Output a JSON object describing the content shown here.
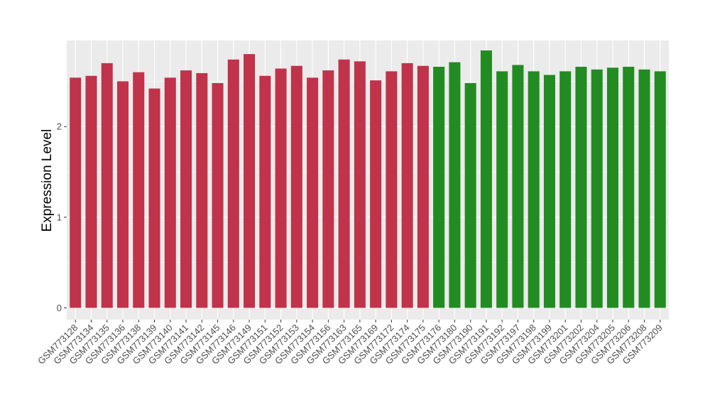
{
  "chart_data": {
    "type": "bar",
    "ylabel": "Expression Level",
    "xlabel": "",
    "ylim": [
      -0.13,
      2.95
    ],
    "yticks": [
      0,
      1,
      2
    ],
    "grid": true,
    "panel_background": "#ebebeb",
    "gridline_color": "#ffffff",
    "colors": {
      "group1": "#c0334a",
      "group2": "#228b22"
    },
    "categories": [
      "GSM773128",
      "GSM773134",
      "GSM773135",
      "GSM773136",
      "GSM773138",
      "GSM773139",
      "GSM773140",
      "GSM773141",
      "GSM773142",
      "GSM773145",
      "GSM773146",
      "GSM773149",
      "GSM773151",
      "GSM773152",
      "GSM773153",
      "GSM773154",
      "GSM773156",
      "GSM773163",
      "GSM773165",
      "GSM773169",
      "GSM773172",
      "GSM773174",
      "GSM773175",
      "GSM773176",
      "GSM773180",
      "GSM773190",
      "GSM773191",
      "GSM773192",
      "GSM773197",
      "GSM773198",
      "GSM773199",
      "GSM773201",
      "GSM773202",
      "GSM773204",
      "GSM773205",
      "GSM773206",
      "GSM773208",
      "GSM773209"
    ],
    "values": [
      2.54,
      2.56,
      2.7,
      2.5,
      2.6,
      2.42,
      2.54,
      2.62,
      2.59,
      2.48,
      2.74,
      2.8,
      2.56,
      2.64,
      2.67,
      2.54,
      2.62,
      2.74,
      2.72,
      2.51,
      2.61,
      2.7,
      2.67,
      2.66,
      2.71,
      2.48,
      2.84,
      2.61,
      2.68,
      2.61,
      2.57,
      2.61,
      2.66,
      2.63,
      2.65,
      2.66,
      2.63,
      2.61
    ],
    "groups": [
      1,
      1,
      1,
      1,
      1,
      1,
      1,
      1,
      1,
      1,
      1,
      1,
      1,
      1,
      1,
      1,
      1,
      1,
      1,
      1,
      1,
      1,
      1,
      2,
      2,
      2,
      2,
      2,
      2,
      2,
      2,
      2,
      2,
      2,
      2,
      2,
      2,
      2
    ]
  }
}
